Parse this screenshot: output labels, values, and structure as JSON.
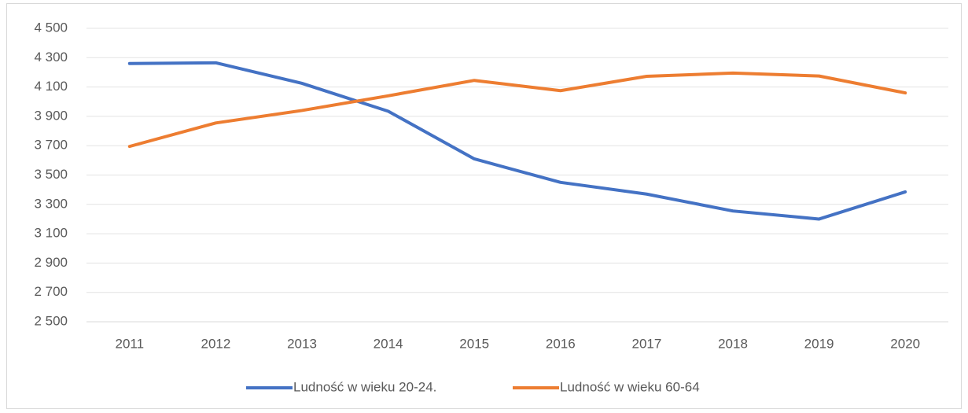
{
  "chart_data": {
    "type": "line",
    "categories": [
      "2011",
      "2012",
      "2013",
      "2014",
      "2015",
      "2016",
      "2017",
      "2018",
      "2019",
      "2020"
    ],
    "series": [
      {
        "name": "Ludność w wieku 20-24.",
        "color": "#4472c4",
        "values": [
          4260,
          4265,
          4125,
          3935,
          3610,
          3450,
          3370,
          3255,
          3200,
          3385
        ]
      },
      {
        "name": "Ludność w wieku 60-64",
        "color": "#ed7d31",
        "values": [
          3695,
          3855,
          3940,
          4040,
          4145,
          4075,
          4173,
          4195,
          4175,
          4060
        ]
      }
    ],
    "ylim": [
      2500,
      4500
    ],
    "yticks": [
      {
        "value": 2500,
        "label": "2 500"
      },
      {
        "value": 2700,
        "label": "2 700"
      },
      {
        "value": 2900,
        "label": "2 900"
      },
      {
        "value": 3100,
        "label": "3 100"
      },
      {
        "value": 3300,
        "label": "3 300"
      },
      {
        "value": 3500,
        "label": "3 500"
      },
      {
        "value": 3700,
        "label": "3 700"
      },
      {
        "value": 3900,
        "label": "3 900"
      },
      {
        "value": 4100,
        "label": "4 100"
      },
      {
        "value": 4300,
        "label": "4 300"
      },
      {
        "value": 4500,
        "label": "4 500"
      }
    ],
    "grid": true,
    "legend": "bottom"
  }
}
